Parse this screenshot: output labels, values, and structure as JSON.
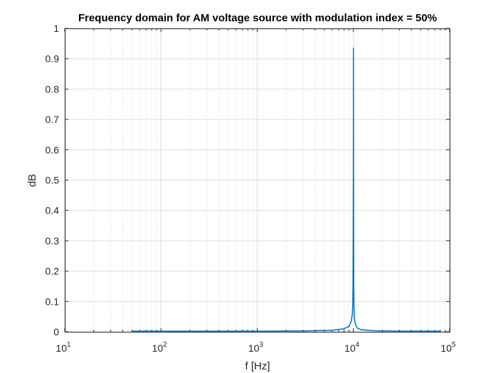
{
  "chart_data": {
    "type": "line",
    "title": "Frequency domain for AM voltage source with modulation index = 50%",
    "xlabel": "f [Hz]",
    "ylabel": "dB",
    "x_scale": "log",
    "xlim": [
      10,
      100000
    ],
    "ylim": [
      0,
      1
    ],
    "grid": true,
    "x_ticks": [
      {
        "base": "10",
        "exp": "1"
      },
      {
        "base": "10",
        "exp": "2"
      },
      {
        "base": "10",
        "exp": "3"
      },
      {
        "base": "10",
        "exp": "4"
      },
      {
        "base": "10",
        "exp": "5"
      }
    ],
    "y_ticks": [
      "0",
      "0.1",
      "0.2",
      "0.3",
      "0.4",
      "0.5",
      "0.6",
      "0.7",
      "0.8",
      "0.9",
      "1"
    ],
    "series_color": "#0072bd",
    "series": [
      {
        "x": [
          50,
          200,
          1000,
          3000,
          6000,
          8000,
          9000,
          9500,
          9750,
          9850,
          9900,
          9950,
          9990,
          10000,
          10010,
          10050,
          10100,
          10150,
          10250,
          10500,
          11000,
          12000,
          15000,
          20000,
          40000,
          60000,
          80000
        ],
        "y": [
          0.002,
          0.002,
          0.002,
          0.003,
          0.005,
          0.01,
          0.018,
          0.035,
          0.06,
          0.09,
          0.15,
          0.33,
          0.6,
          0.935,
          0.78,
          0.33,
          0.14,
          0.08,
          0.045,
          0.025,
          0.012,
          0.007,
          0.004,
          0.003,
          0.002,
          0.002,
          0.002
        ]
      }
    ]
  }
}
